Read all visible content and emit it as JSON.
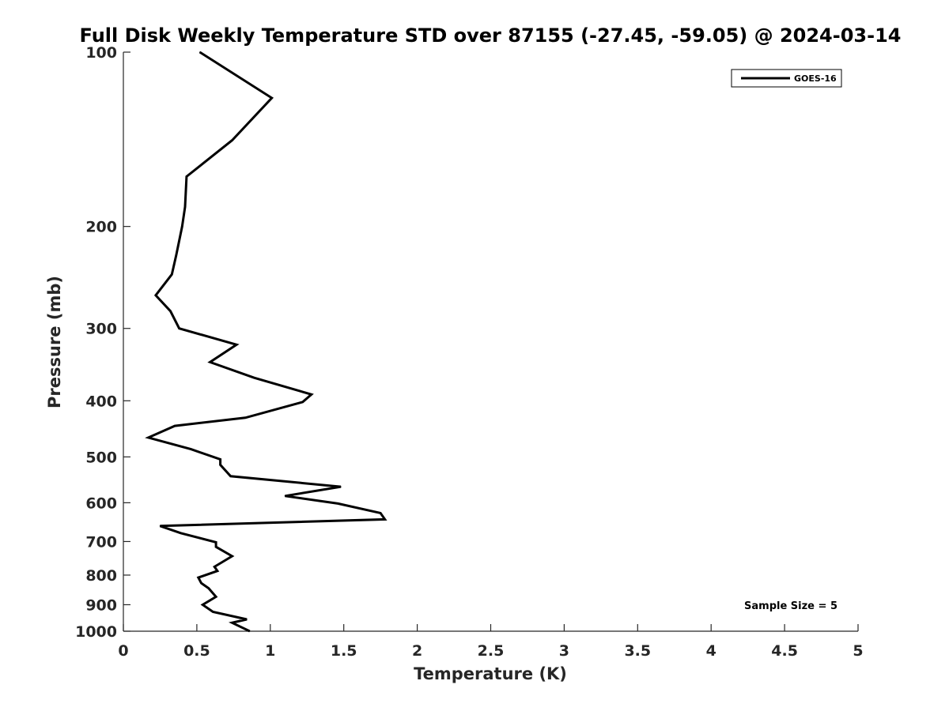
{
  "chart_data": {
    "type": "line",
    "title": "Full Disk Weekly Temperature STD over 87155 (-27.45, -59.05) @ 2024-03-14",
    "xlabel": "Temperature (K)",
    "ylabel": "Pressure (mb)",
    "xlim": [
      0,
      5
    ],
    "ylim": [
      100,
      1000
    ],
    "y_scale": "log",
    "y_reversed": true,
    "grid": false,
    "x_ticks": [
      "0",
      "0.5",
      "1",
      "1.5",
      "2",
      "2.5",
      "3",
      "3.5",
      "4",
      "4.5",
      "5"
    ],
    "y_ticks": [
      "100",
      "200",
      "300",
      "400",
      "500",
      "600",
      "700",
      "800",
      "900",
      "1000"
    ],
    "legend_position": "top-right",
    "annotation": "Sample Size = 5",
    "series": [
      {
        "name": "GOES-16",
        "color": "#000000",
        "points": [
          [
            0.52,
            100
          ],
          [
            1.01,
            120
          ],
          [
            0.74,
            142
          ],
          [
            0.43,
            164
          ],
          [
            0.42,
            185
          ],
          [
            0.4,
            200
          ],
          [
            0.36,
            224
          ],
          [
            0.33,
            242
          ],
          [
            0.22,
            263
          ],
          [
            0.32,
            280
          ],
          [
            0.38,
            300
          ],
          [
            0.77,
            320
          ],
          [
            0.59,
            343
          ],
          [
            0.89,
            365
          ],
          [
            1.28,
            390
          ],
          [
            1.22,
            402
          ],
          [
            0.83,
            428
          ],
          [
            0.35,
            442
          ],
          [
            0.17,
            463
          ],
          [
            0.46,
            485
          ],
          [
            0.66,
            505
          ],
          [
            0.66,
            516
          ],
          [
            0.73,
            540
          ],
          [
            1.48,
            563
          ],
          [
            1.1,
            584
          ],
          [
            1.46,
            602
          ],
          [
            1.75,
            625
          ],
          [
            1.78,
            641
          ],
          [
            0.25,
            658
          ],
          [
            0.39,
            677
          ],
          [
            0.63,
            702
          ],
          [
            0.63,
            715
          ],
          [
            0.74,
            742
          ],
          [
            0.62,
            774
          ],
          [
            0.64,
            787
          ],
          [
            0.51,
            808
          ],
          [
            0.53,
            826
          ],
          [
            0.58,
            843
          ],
          [
            0.63,
            872
          ],
          [
            0.54,
            900
          ],
          [
            0.61,
            926
          ],
          [
            0.84,
            954
          ],
          [
            0.74,
            967
          ],
          [
            0.86,
            1000
          ]
        ]
      }
    ]
  }
}
